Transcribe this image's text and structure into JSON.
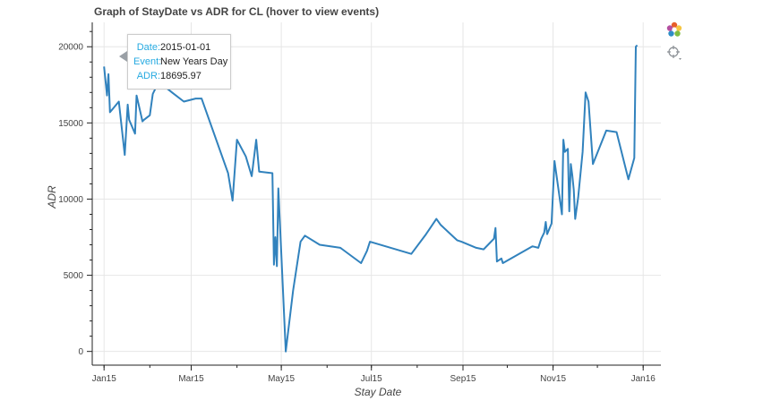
{
  "chart_data": {
    "type": "line",
    "title": "Graph of StayDate vs ADR for CL (hover to view events)",
    "xlabel": "Stay Date",
    "ylabel": "ADR",
    "x_ticks": [
      "Jan15",
      "Mar15",
      "May15",
      "Jul15",
      "Sep15",
      "Nov15",
      "Jan16"
    ],
    "y_ticks": [
      "0",
      "5000",
      "10000",
      "15000",
      "20000"
    ],
    "ylim": [
      -900,
      21600
    ],
    "xlim": [
      "2014-12-24",
      "2016-01-13"
    ],
    "grid": true,
    "line_color": "#3182bd",
    "series": [
      {
        "x": [
          "2015-01-01",
          "2015-01-03",
          "2015-01-04",
          "2015-01-05",
          "2015-01-11",
          "2015-01-14",
          "2015-01-15",
          "2015-01-17",
          "2015-01-18",
          "2015-01-22",
          "2015-01-23",
          "2015-01-27",
          "2015-01-28",
          "2015-02-01",
          "2015-02-03",
          "2015-02-07",
          "2015-02-16",
          "2015-02-24",
          "2015-03-04",
          "2015-03-08",
          "2015-03-26",
          "2015-03-29",
          "2015-04-01",
          "2015-04-07",
          "2015-04-11",
          "2015-04-14",
          "2015-04-16",
          "2015-04-25",
          "2015-04-26",
          "2015-04-27",
          "2015-04-28",
          "2015-04-29",
          "2015-05-04",
          "2015-05-09",
          "2015-05-14",
          "2015-05-17",
          "2015-05-27",
          "2015-06-10",
          "2015-06-24",
          "2015-06-28",
          "2015-06-30",
          "2015-07-28",
          "2015-08-07",
          "2015-08-14",
          "2015-08-17",
          "2015-08-28",
          "2015-08-31",
          "2015-09-10",
          "2015-09-15",
          "2015-09-18",
          "2015-09-22",
          "2015-09-23",
          "2015-09-24",
          "2015-09-27",
          "2015-09-28",
          "2015-10-18",
          "2015-10-22",
          "2015-10-24",
          "2015-10-26",
          "2015-10-27",
          "2015-10-28",
          "2015-10-31",
          "2015-11-02",
          "2015-11-07",
          "2015-11-08",
          "2015-11-09",
          "2015-11-11",
          "2015-11-12",
          "2015-11-13",
          "2015-11-14",
          "2015-11-15",
          "2015-11-16",
          "2015-11-18",
          "2015-11-21",
          "2015-11-23",
          "2015-11-25",
          "2015-11-28",
          "2015-12-07",
          "2015-12-14",
          "2015-12-22",
          "2015-12-26",
          "2015-12-27",
          "2015-12-28"
        ],
        "y": [
          18696,
          16800,
          18200,
          15700,
          16400,
          13800,
          12900,
          16200,
          15200,
          14300,
          16800,
          15100,
          15200,
          15500,
          16900,
          17700,
          17000,
          16400,
          16600,
          16600,
          11700,
          9900,
          13900,
          12800,
          11500,
          13900,
          11800,
          11700,
          5700,
          7500,
          5600,
          10700,
          0,
          4000,
          7200,
          7600,
          7000,
          6800,
          5800,
          6600,
          7200,
          6400,
          7700,
          8700,
          8300,
          7300,
          7200,
          6800,
          6700,
          7000,
          7400,
          8100,
          5900,
          6100,
          5800,
          6900,
          6800,
          7400,
          7800,
          8500,
          7700,
          8400,
          12500,
          9000,
          13900,
          13100,
          13300,
          9200,
          12300,
          11600,
          10600,
          8700,
          10100,
          13100,
          17000,
          16400,
          12300,
          14500,
          14400,
          11300,
          12700,
          20000,
          20100
        ]
      }
    ]
  },
  "tooltip": {
    "date_key": "Date:",
    "date_value": "2015-01-01",
    "event_key": "Event:",
    "event_value": "New Years Day",
    "adr_key": "ADR:",
    "adr_value": "18695.97"
  },
  "toolbar": {
    "tools": [
      "bokeh-logo-icon",
      "crosshair-icon"
    ]
  }
}
